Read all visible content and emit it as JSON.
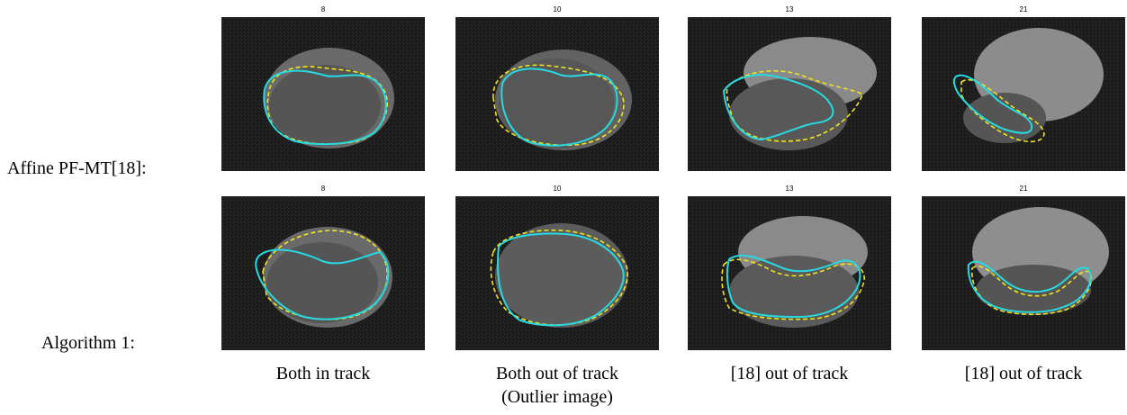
{
  "rows": [
    {
      "label": "Affine PF-MT[18]:",
      "panels": [
        {
          "frame": "8"
        },
        {
          "frame": "10"
        },
        {
          "frame": "13"
        },
        {
          "frame": "21"
        }
      ]
    },
    {
      "label": "Algorithm 1:",
      "panels": [
        {
          "frame": "8"
        },
        {
          "frame": "10"
        },
        {
          "frame": "13"
        },
        {
          "frame": "21"
        }
      ]
    }
  ],
  "captions": [
    {
      "line1": "Both in track",
      "line2": ""
    },
    {
      "line1": "Both out of track",
      "line2": "(Outlier image)"
    },
    {
      "line1": "[18] out of track",
      "line2": ""
    },
    {
      "line1": "[18] out of track",
      "line2": ""
    }
  ],
  "colors": {
    "estimated_contour": "#27d9e0",
    "ground_truth_contour": "#f2e41c",
    "background": "#1d1d1d"
  }
}
